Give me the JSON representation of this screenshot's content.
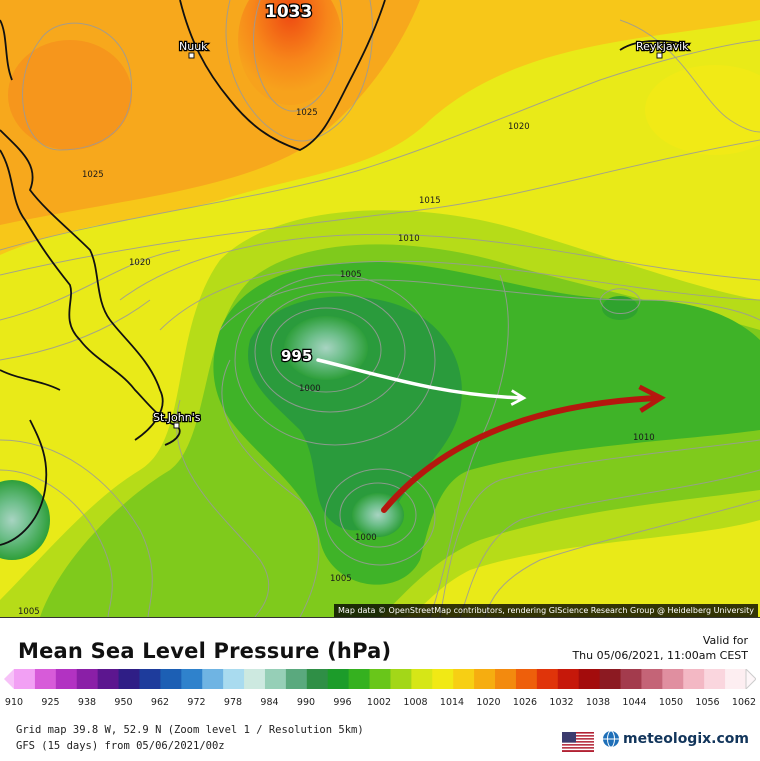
{
  "map": {
    "high_label": "1033",
    "low_label": "995",
    "cities": {
      "nuuk": "Nuuk",
      "reykjavik": "Reykjavik",
      "st_johns": "St.John's"
    },
    "contours": {
      "c1025_a": "1025",
      "c1025_b": "1025",
      "c1020_a": "1020",
      "c1020_b": "1020",
      "c1015": "1015",
      "c1010_a": "1010",
      "c1010_b": "1010",
      "c1005_a": "1005",
      "c1005_b": "1005",
      "c1005_c": "1005",
      "c1000_a": "1000",
      "c1000_b": "1000"
    },
    "attribution": "Map data © OpenStreetMap contributors, rendering GIScience Research Group @ Heidelberg University",
    "arrows": {
      "white": "#ffffff",
      "red": "#b5170e"
    }
  },
  "legend": {
    "title": "Mean Sea Level Pressure (hPa)",
    "valid_label": "Valid for",
    "valid_time": "Thu 05/06/2021, 11:00am CEST",
    "ticks": [
      "910",
      "925",
      "938",
      "950",
      "962",
      "972",
      "978",
      "984",
      "990",
      "996",
      "1002",
      "1008",
      "1014",
      "1020",
      "1026",
      "1032",
      "1038",
      "1044",
      "1050",
      "1056",
      "1062"
    ],
    "colors": [
      "#f2a0f4",
      "#d75bd9",
      "#b232c2",
      "#8a1fa7",
      "#5c168f",
      "#2f1e86",
      "#1e3c9c",
      "#1c5fb4",
      "#2f82cc",
      "#6fb4e3",
      "#a9dbef",
      "#cde9e0",
      "#96cfb7",
      "#5aa97e",
      "#2f8f46",
      "#1c9c2a",
      "#35b11f",
      "#69c61a",
      "#a3d718",
      "#d6e617",
      "#f1e915",
      "#f7cf14",
      "#f6ad10",
      "#f38a0e",
      "#ee5f0b",
      "#e0340a",
      "#c6180a",
      "#a30c0c",
      "#8c1a22",
      "#a33b4d",
      "#c46477",
      "#e08fa0",
      "#f3b8c4",
      "#fad6de",
      "#fdeef1"
    ],
    "grid_info": "Grid map 39.8 W, 52.9 N (Zoom level 1 / Resolution 5km)",
    "model_info": "GFS (15 days) from  05/06/2021/00z",
    "brand": "meteologix.com"
  }
}
